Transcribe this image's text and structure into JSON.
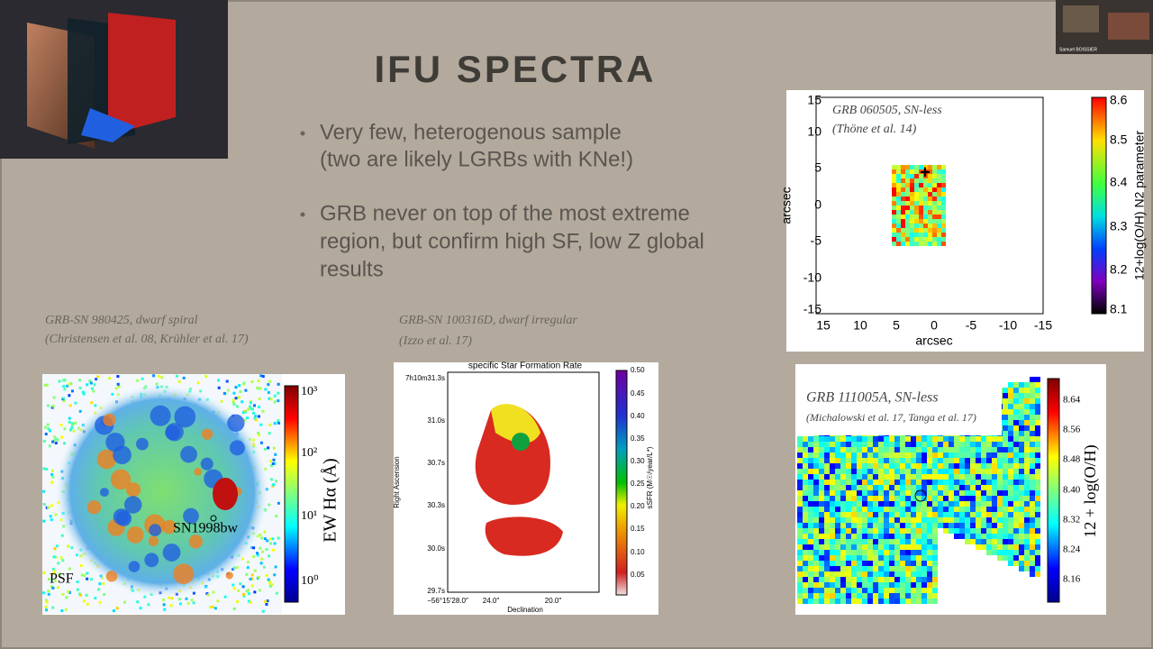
{
  "title": "IFU SPECTRA",
  "bullets": [
    {
      "lines": [
        "Very few, heterogenous sample",
        "(two are likely LGRBs with KNe!)"
      ]
    },
    {
      "lines": [
        "GRB never on top of the most extreme",
        "region, but confirm high SF, low Z global",
        "results"
      ]
    }
  ],
  "presenter": "Samuel BOISSIER",
  "panels": [
    {
      "caption": [
        "GRB-SN 980425, dwarf spiral",
        "(Christensen et al. 08, Krühler et al. 17)"
      ],
      "labels": [
        "SN1998bw",
        "PSF"
      ],
      "colorbar_ticks": [
        "10³",
        "10²",
        "10¹",
        "10⁰"
      ],
      "colorbar_label": "EW Hα (Å)"
    },
    {
      "caption": [
        "GRB-SN 100316D, dwarf irregular",
        "(Izzo et al. 17)"
      ],
      "plot_title": "specific Star Formation Rate",
      "yticks": [
        "7h10m31.3s",
        "31.0s",
        "30.7s",
        "30.3s",
        "30.0s",
        "29.7s"
      ],
      "xticks": [
        "−56°15′28.0″",
        "24.0″",
        "20.0″"
      ],
      "xlabel": "Declination",
      "ylabel": "Right Ascension",
      "colorbar_ticks": [
        "0.50",
        "0.45",
        "0.40",
        "0.35",
        "0.30",
        "0.25",
        "0.20",
        "0.15",
        "0.10",
        "0.05"
      ],
      "colorbar_label": "sSFR (M☉/year/L*)"
    },
    {
      "labels": [
        "GRB 060505, SN-less",
        "(Thöne et al. 14)"
      ],
      "yticks": [
        "15",
        "10",
        "5",
        "0",
        "-5",
        "-10",
        "-15"
      ],
      "xticks": [
        "15",
        "10",
        "5",
        "0",
        "-5",
        "-10",
        "-15"
      ],
      "xlabel": "arcsec",
      "ylabel": "arcsec",
      "colorbar_ticks": [
        "8.6",
        "8.5",
        "8.4",
        "8.3",
        "8.2",
        "8.1"
      ],
      "colorbar_label": "12+log(O/H) N2 parameter"
    },
    {
      "labels": [
        "GRB 111005A, SN-less",
        "(Michalowski et al. 17, Tanga et al. 17)"
      ],
      "colorbar_ticks": [
        "8.64",
        "8.56",
        "8.48",
        "8.40",
        "8.32",
        "8.24",
        "8.16"
      ],
      "colorbar_label": "12 + log(O/H)"
    }
  ]
}
